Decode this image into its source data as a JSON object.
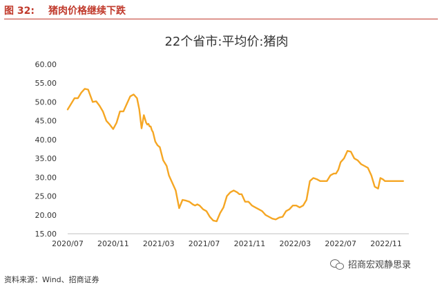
{
  "figure": {
    "label": "图 32:",
    "title": "猪肉价格继续下跌",
    "source": "资料来源：Wind、招商证券",
    "watermark": "招商宏观静思录",
    "watermark_icon": "wechat-icon"
  },
  "chart_data": {
    "type": "line",
    "title": "22个省市:平均价:猪肉",
    "xlabel": "",
    "ylabel": "",
    "ylim": [
      15,
      60
    ],
    "y_ticks": [
      "15.00",
      "20.00",
      "25.00",
      "30.00",
      "35.00",
      "40.00",
      "45.00",
      "50.00",
      "55.00",
      "60.00"
    ],
    "x_ticks": [
      "2020/07",
      "2020/11",
      "2021/03",
      "2021/07",
      "2021/11",
      "2022/03",
      "2022/07",
      "2022/11"
    ],
    "x_tick_months": [
      0,
      4,
      8,
      12,
      16,
      20,
      24,
      28
    ],
    "grid": false,
    "color": "#f5a623",
    "series": [
      {
        "name": "",
        "x_months": [
          0.0,
          0.3,
          0.6,
          0.9,
          1.2,
          1.5,
          1.8,
          2.2,
          2.5,
          2.8,
          3.1,
          3.4,
          3.7,
          4.0,
          4.3,
          4.6,
          4.9,
          5.2,
          5.5,
          5.8,
          6.1,
          6.3,
          6.5,
          6.7,
          6.9,
          7.0,
          7.1,
          7.2,
          7.3,
          7.4,
          7.5,
          7.7,
          7.9,
          8.1,
          8.4,
          8.7,
          8.9,
          9.2,
          9.5,
          9.8,
          10.1,
          10.4,
          10.7,
          11.0,
          11.2,
          11.4,
          11.6,
          11.9,
          12.2,
          12.5,
          12.8,
          13.1,
          13.4,
          13.7,
          14.0,
          14.3,
          14.6,
          14.9,
          15.1,
          15.3,
          15.6,
          15.9,
          16.2,
          16.5,
          16.8,
          17.1,
          17.4,
          17.7,
          18.0,
          18.3,
          18.6,
          18.9,
          19.2,
          19.5,
          19.8,
          20.1,
          20.4,
          20.7,
          21.0,
          21.3,
          21.6,
          21.9,
          22.2,
          22.5,
          22.8,
          23.1,
          23.4,
          23.6,
          23.8,
          24.0,
          24.3,
          24.6,
          24.9,
          25.2,
          25.5,
          25.8,
          26.1,
          26.4,
          26.7,
          27.0,
          27.3,
          27.5,
          27.7,
          27.9,
          28.2,
          28.5,
          28.8,
          29.1,
          29.3,
          29.5
        ],
        "values": [
          48.0,
          49.5,
          51.0,
          51.0,
          52.5,
          53.5,
          53.3,
          50.0,
          50.2,
          49.0,
          47.5,
          45.0,
          44.0,
          42.8,
          44.5,
          47.5,
          47.5,
          49.5,
          51.5,
          52.0,
          51.0,
          48.0,
          43.0,
          46.5,
          44.5,
          44.0,
          44.2,
          43.5,
          43.5,
          42.5,
          42.0,
          39.5,
          38.5,
          38.0,
          34.5,
          33.0,
          30.5,
          28.5,
          26.5,
          21.8,
          24.0,
          23.8,
          23.5,
          22.8,
          22.5,
          22.8,
          22.5,
          21.5,
          21.0,
          19.5,
          18.5,
          18.3,
          20.5,
          22.0,
          25.0,
          26.0,
          26.5,
          26.0,
          25.5,
          25.5,
          23.5,
          23.5,
          22.5,
          22.0,
          21.5,
          21.0,
          20.0,
          19.5,
          19.0,
          18.8,
          19.3,
          19.5,
          21.0,
          21.5,
          22.5,
          22.5,
          22.0,
          22.5,
          24.0,
          29.0,
          29.8,
          29.5,
          29.0,
          29.0,
          29.0,
          30.5,
          31.0,
          31.0,
          32.0,
          34.0,
          35.0,
          37.0,
          36.8,
          35.0,
          34.5,
          33.5,
          33.0,
          32.5,
          30.5,
          27.5,
          27.0,
          29.8,
          29.5,
          29.0,
          29.0,
          29.0,
          29.0,
          29.0,
          29.0,
          29.0
        ]
      }
    ]
  }
}
